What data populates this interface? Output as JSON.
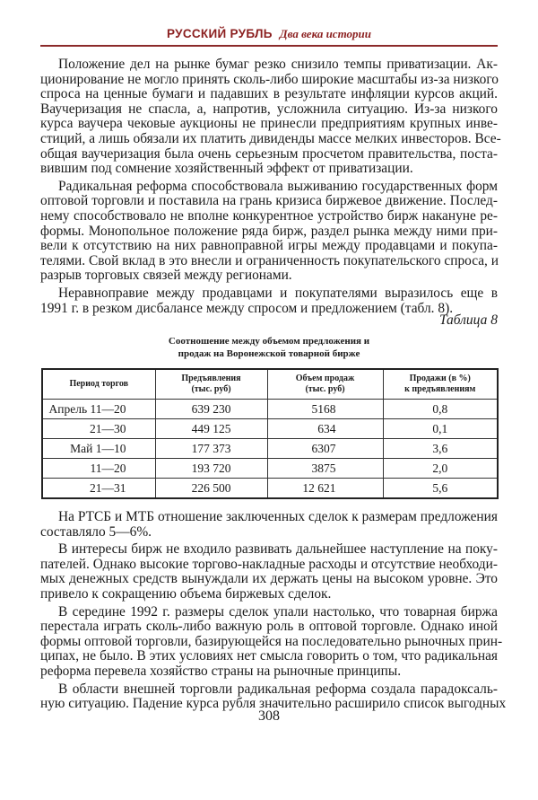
{
  "header": {
    "title": "РУССКИЙ РУБЛЬ",
    "subtitle": "Два века истории"
  },
  "paragraphs_top": [
    [
      "Положение дел на рынке бумаг резко снизило темпы приватизации. Ак-",
      "ционирование не могло принять сколь-либо широкие масштабы из-за низкого",
      "спроса на ценные бумаги и падавших в результате инфляции курсов акций.",
      "Ваучеризация не спасла, а, напротив, усложнила ситуацию. Из-за низкого",
      "курса ваучера чековые аукционы не принесли предприятиям крупных инве-",
      "стиций, а лишь обязали их платить дивиденды массе мелких инвесторов. Все-",
      "общая ваучеризация была очень серьезным просчетом правительства, поста-",
      "вившим под сомнение хозяйственный эффект от приватизации."
    ],
    [
      "Радикальная реформа способствовала выживанию государственных форм",
      "оптовой торговли и поставила на грань кризиса биржевое движение. Послед-",
      "нему способствовало не вполне конкурентное устройство бирж накануне ре-",
      "формы. Монопольное положение ряда бирж, раздел рынка между ними при-",
      "вели к отсутствию на них равноправной игры между продавцами и покупа-",
      "телями. Свой вклад в это внесли и ограниченность покупательского спроса, и",
      "разрыв торговых связей между регионами."
    ],
    [
      "Неравноправие между продавцами и покупателями выразилось еще в",
      "1991 г. в резком дисбалансе между спросом и предложением (табл. 8)."
    ]
  ],
  "table": {
    "label": "Таблица 8",
    "caption_lines": [
      "Соотношение между объемом предложения и",
      "продаж на Воронежской товарной бирже"
    ],
    "headers": [
      [
        "Период торгов",
        ""
      ],
      [
        "Предъявления",
        "(тыс. руб)"
      ],
      [
        "Объем продаж",
        "(тыс. руб)"
      ],
      [
        "Продажи (в %)",
        "к предъявлениям"
      ]
    ],
    "rows": [
      [
        "Апрель 11—20",
        "639 230",
        "5168",
        "0,8"
      ],
      [
        "21—30",
        "449 125",
        "634",
        "0,1"
      ],
      [
        "Май  1—10",
        "177 373",
        "6307",
        "3,6"
      ],
      [
        "11—20",
        "193 720",
        "3875",
        "2,0"
      ],
      [
        "21—31",
        "226 500",
        "12 621",
        "5,6"
      ]
    ]
  },
  "paragraphs_bottom": [
    [
      "На РТСБ и МТБ отношение заключенных сделок к размерам предложения",
      "составляло 5—6%."
    ],
    [
      "В интересы бирж не входило развивать дальнейшее наступление на поку-",
      "пателей. Однако высокие торгово-накладные расходы и отсутствие необходи-",
      "мых денежных средств вынуждали их держать цены на высоком уровне. Это",
      "привело к сокращению объема биржевых сделок."
    ],
    [
      "В середине 1992 г. размеры сделок упали настолько, что товарная биржа",
      "перестала играть сколь-либо важную роль в оптовой торговле. Однако иной",
      "формы оптовой торговли, базирующейся на последовательно рыночных прин-",
      "ципах, не было. В этих условиях нет смысла говорить о том, что радикальная",
      "реформа перевела хозяйство страны на рыночные принципы."
    ],
    [
      "В области внешней торговли радикальная реформа создала парадоксаль-",
      "ную ситуацию. Падение курса рубля значительно расширило список выгодных"
    ]
  ],
  "page_number": "308",
  "colors": {
    "header": "#8b1f1f",
    "rule": "#8b2a2a"
  }
}
